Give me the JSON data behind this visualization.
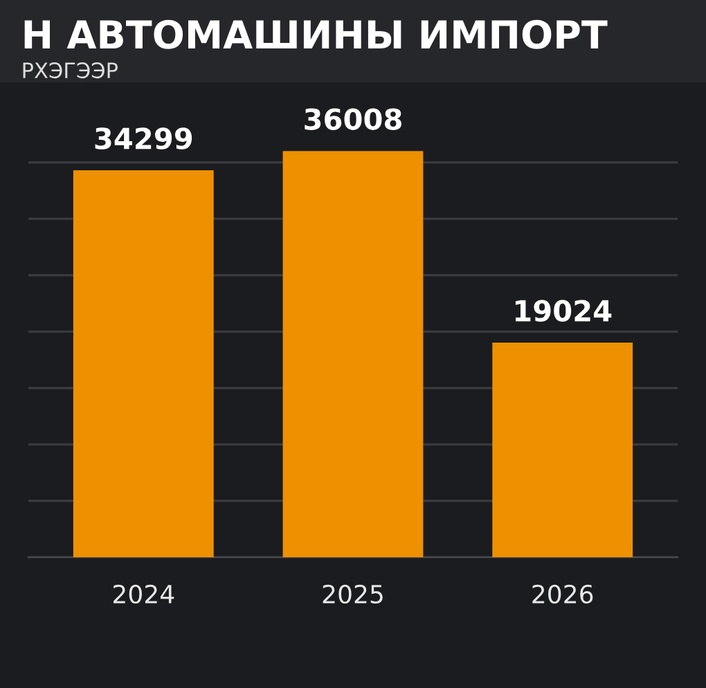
{
  "chart_data": {
    "type": "bar",
    "title": "Н АВТОМАШИНЫ ИМПОРТ",
    "subtitle": "РХЭГЭЭР",
    "categories": [
      "2024",
      "2025",
      "2026"
    ],
    "series": [
      {
        "color": "#ee9100",
        "values": [
          34299,
          36008,
          19024
        ]
      }
    ],
    "data_labels": true,
    "grid": "y",
    "legend": false
  }
}
